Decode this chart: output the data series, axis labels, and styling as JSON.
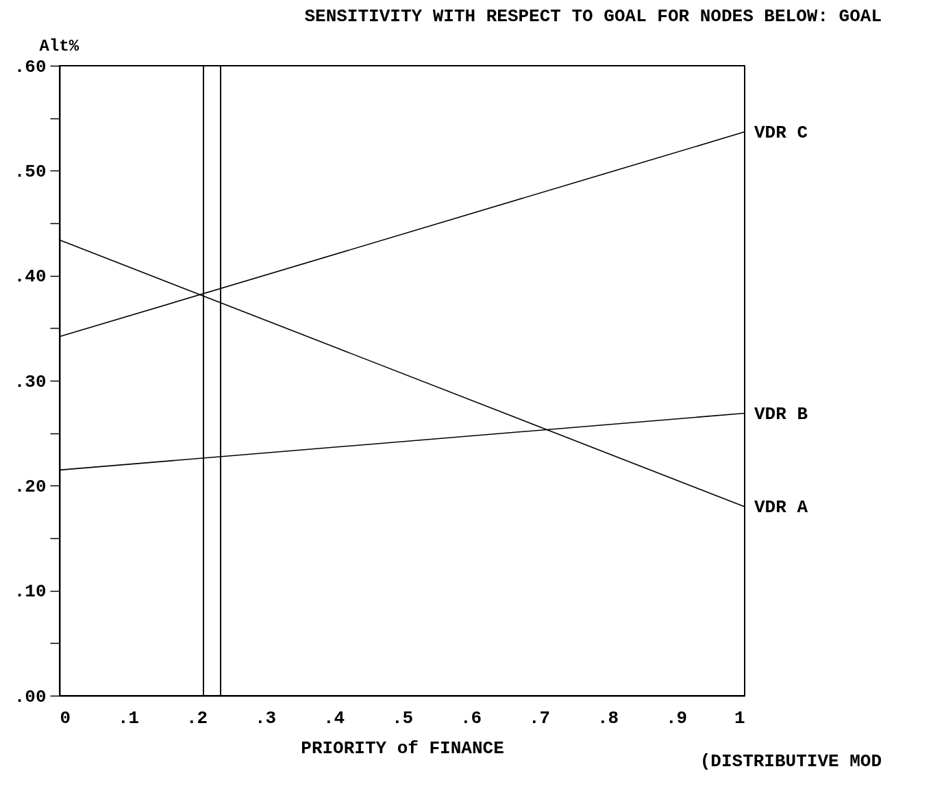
{
  "chart_data": {
    "type": "line",
    "title": "SENSITIVITY WITH RESPECT TO GOAL FOR NODES BELOW:   GOAL",
    "xlabel": "PRIORITY of FINANCE",
    "ylabel": "Alt%",
    "annotations": [
      "(DISTRIBUTIVE MOD"
    ],
    "x": [
      0,
      1
    ],
    "series": [
      {
        "name": "VDR C",
        "color": "#000000",
        "values": [
          0.342,
          0.537
        ]
      },
      {
        "name": "VDR B",
        "color": "#000000",
        "values": [
          0.215,
          0.269
        ]
      },
      {
        "name": "VDR A",
        "color": "#000000",
        "values": [
          0.434,
          0.18
        ]
      }
    ],
    "xlim": [
      0,
      1
    ],
    "xticks": [
      0,
      {
        "value": 0.1,
        "label": ".1"
      },
      {
        "value": 0.2,
        "label": ".2"
      },
      {
        "value": 0.3,
        "label": ".3"
      },
      {
        "value": 0.4,
        "label": ".4"
      },
      {
        "value": 0.5,
        "label": ".5"
      },
      {
        "value": 0.6,
        "label": ".6"
      },
      {
        "value": 0.7,
        "label": ".7"
      },
      {
        "value": 0.8,
        "label": ".8"
      },
      {
        "value": 0.9,
        "label": ".9"
      },
      1
    ],
    "ylim": [
      0,
      0.6
    ],
    "yticks": [
      {
        "value": 0,
        "label": ".00"
      },
      {
        "value": 0.05,
        "label": null
      },
      {
        "value": 0.1,
        "label": ".10"
      },
      {
        "value": 0.15,
        "label": null
      },
      {
        "value": 0.2,
        "label": ".20"
      },
      {
        "value": 0.25,
        "label": null
      },
      {
        "value": 0.3,
        "label": ".30"
      },
      {
        "value": 0.35,
        "label": null
      },
      {
        "value": 0.4,
        "label": ".40"
      },
      {
        "value": 0.45,
        "label": null
      },
      {
        "value": 0.5,
        "label": ".50"
      },
      {
        "value": 0.55,
        "label": null
      },
      {
        "value": 0.6,
        "label": ".60"
      }
    ],
    "ref_lines": [
      {
        "axis": "x",
        "value": 0.21
      },
      {
        "axis": "x",
        "value": 0.235
      }
    ],
    "grid": false,
    "legend": false,
    "marker": "none",
    "line_style": "solid"
  }
}
